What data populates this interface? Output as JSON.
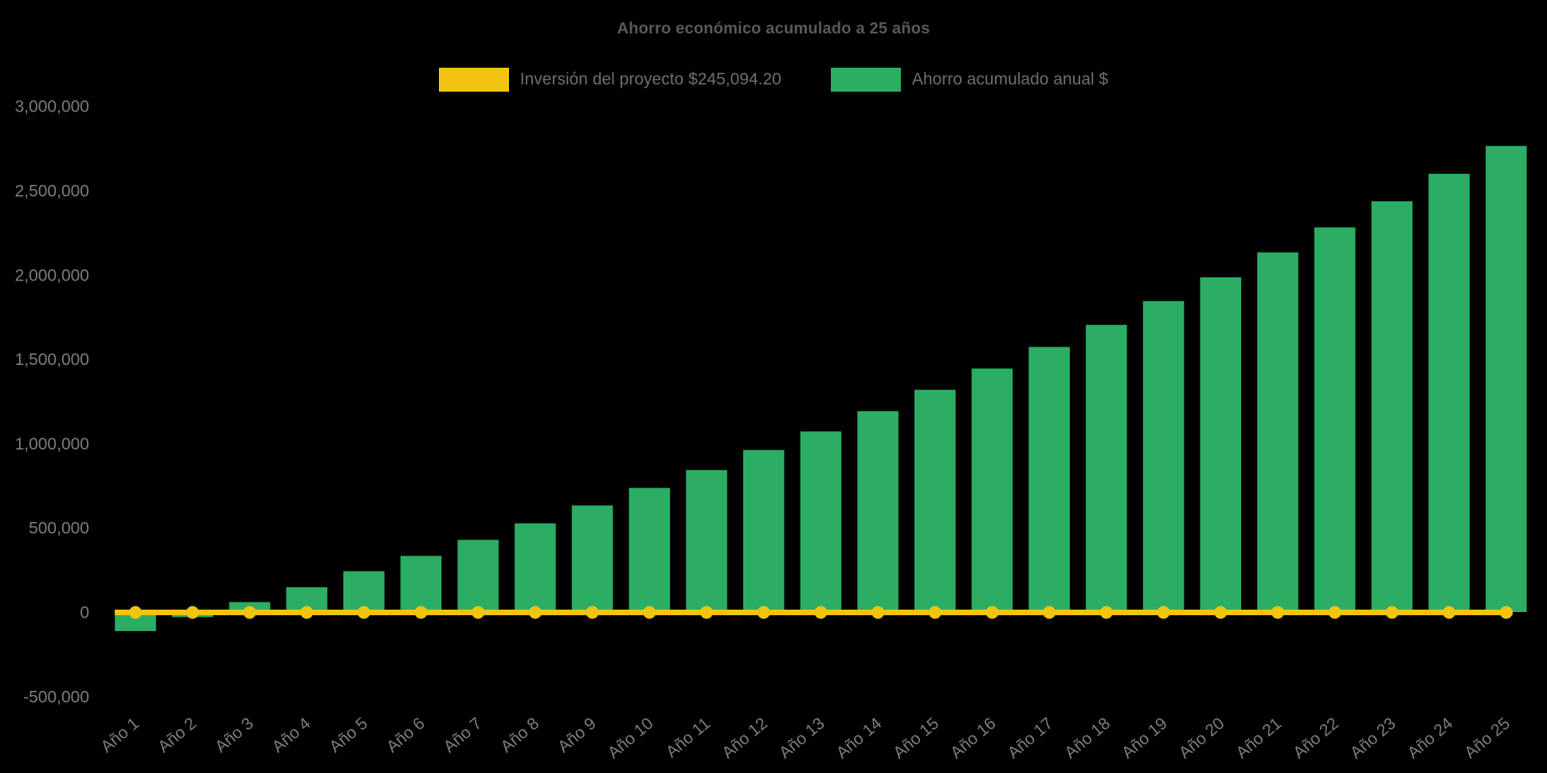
{
  "app": {
    "background_color": "#000000"
  },
  "chart": {
    "title": "Ahorro económico acumulado a 25 años",
    "legend_items": [
      {
        "label": "Inversión del proyecto $245,094.20",
        "color": "#F1C40F",
        "series_type": "line"
      },
      {
        "label": "Ahorro acumulado anual $",
        "color": "#2BAD64",
        "series_type": "bar"
      }
    ]
  },
  "chart_data": {
    "type": "bar",
    "title": "Ahorro económico acumulado a 25 años",
    "categories": [
      "Año 1",
      "Año 2",
      "Año 3",
      "Año 4",
      "Año 5",
      "Año 6",
      "Año 7",
      "Año 8",
      "Año 9",
      "Año 10",
      "Año 11",
      "Año 12",
      "Año 13",
      "Año 14",
      "Año 15",
      "Año 16",
      "Año 17",
      "Año 18",
      "Año 19",
      "Año 20",
      "Año 21",
      "Año 22",
      "Año 23",
      "Año 24",
      "Año 25"
    ],
    "series": [
      {
        "name": "Inversión del proyecto $245,094.20",
        "type": "line",
        "color": "#F1C40F",
        "point_style": "circle",
        "values": [
          0,
          0,
          0,
          0,
          0,
          0,
          0,
          0,
          0,
          0,
          0,
          0,
          0,
          0,
          0,
          0,
          0,
          0,
          0,
          0,
          0,
          0,
          0,
          0,
          0
        ]
      },
      {
        "name": "Ahorro acumulado anual $",
        "type": "bar",
        "color": "#2BAD64",
        "values": [
          -113000,
          -30000,
          59000,
          147000,
          242000,
          333000,
          428000,
          526000,
          632000,
          736000,
          842000,
          961000,
          1071000,
          1191000,
          1318000,
          1444000,
          1572000,
          1703000,
          1844000,
          1985000,
          2133000,
          2281000,
          2436000,
          2599000,
          2764000
        ]
      }
    ],
    "xlabel": "",
    "ylabel": "",
    "ylim": [
      -500000,
      3000000
    ],
    "ytick_interval": 500000,
    "ytick_labels": [
      "-500,000",
      "0",
      "500,000",
      "1,000,000",
      "1,500,000",
      "2,000,000",
      "2,500,000",
      "3,000,000"
    ],
    "x_label_rotation_deg": -40,
    "legend_position": "top",
    "grid": false,
    "colors": {
      "background": "#000000",
      "title_text": "#595959",
      "axis_text": "#7D7D7D",
      "legend_text": "#6E6E6E",
      "bar": "#2BAD64",
      "line": "#F1C40F"
    }
  }
}
